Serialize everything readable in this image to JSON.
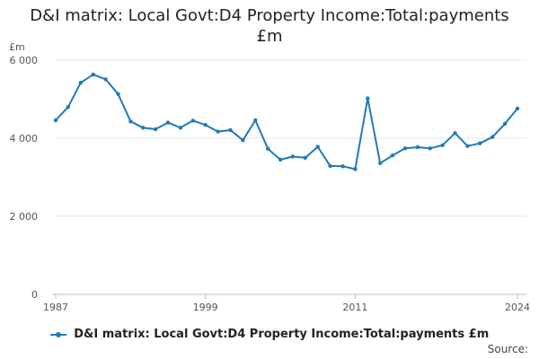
{
  "chart_data": {
    "type": "line",
    "title_lines": [
      "D&I matrix: Local Govt:D4 Property Income:Total:payments",
      "£m"
    ],
    "ylabel": "£m",
    "ylim": [
      0,
      6000
    ],
    "yticks": [
      0,
      2000,
      4000,
      6000
    ],
    "ytick_labels": [
      "0",
      "2 000",
      "4 000",
      "6 000"
    ],
    "xlim": [
      1987,
      2024
    ],
    "xticks": [
      1987,
      1999,
      2011,
      2024
    ],
    "xtick_labels": [
      "1987",
      "1999",
      "2011",
      "2024"
    ],
    "grid": "horizontal",
    "legend_position": "bottom",
    "color": "#1f7bb6",
    "series": [
      {
        "name": "D&I matrix: Local Govt:D4 Property Income:Total:payments £m",
        "x": [
          1987,
          1988,
          1989,
          1990,
          1991,
          1992,
          1993,
          1994,
          1995,
          1996,
          1997,
          1998,
          1999,
          2000,
          2001,
          2002,
          2003,
          2004,
          2005,
          2006,
          2007,
          2008,
          2009,
          2010,
          2011,
          2012,
          2013,
          2014,
          2015,
          2016,
          2017,
          2018,
          2019,
          2020,
          2021,
          2022,
          2023,
          2024
        ],
        "values": [
          4460,
          4800,
          5420,
          5630,
          5510,
          5130,
          4430,
          4270,
          4230,
          4400,
          4270,
          4450,
          4340,
          4170,
          4210,
          3950,
          4460,
          3730,
          3450,
          3530,
          3500,
          3780,
          3290,
          3280,
          3210,
          5020,
          3360,
          3560,
          3740,
          3770,
          3740,
          3820,
          4130,
          3800,
          3870,
          4030,
          4370,
          4760
        ]
      }
    ]
  },
  "legend": {
    "label": "D&I matrix: Local Govt:D4 Property Income:Total:payments £m"
  },
  "source": {
    "label": "Source:"
  }
}
